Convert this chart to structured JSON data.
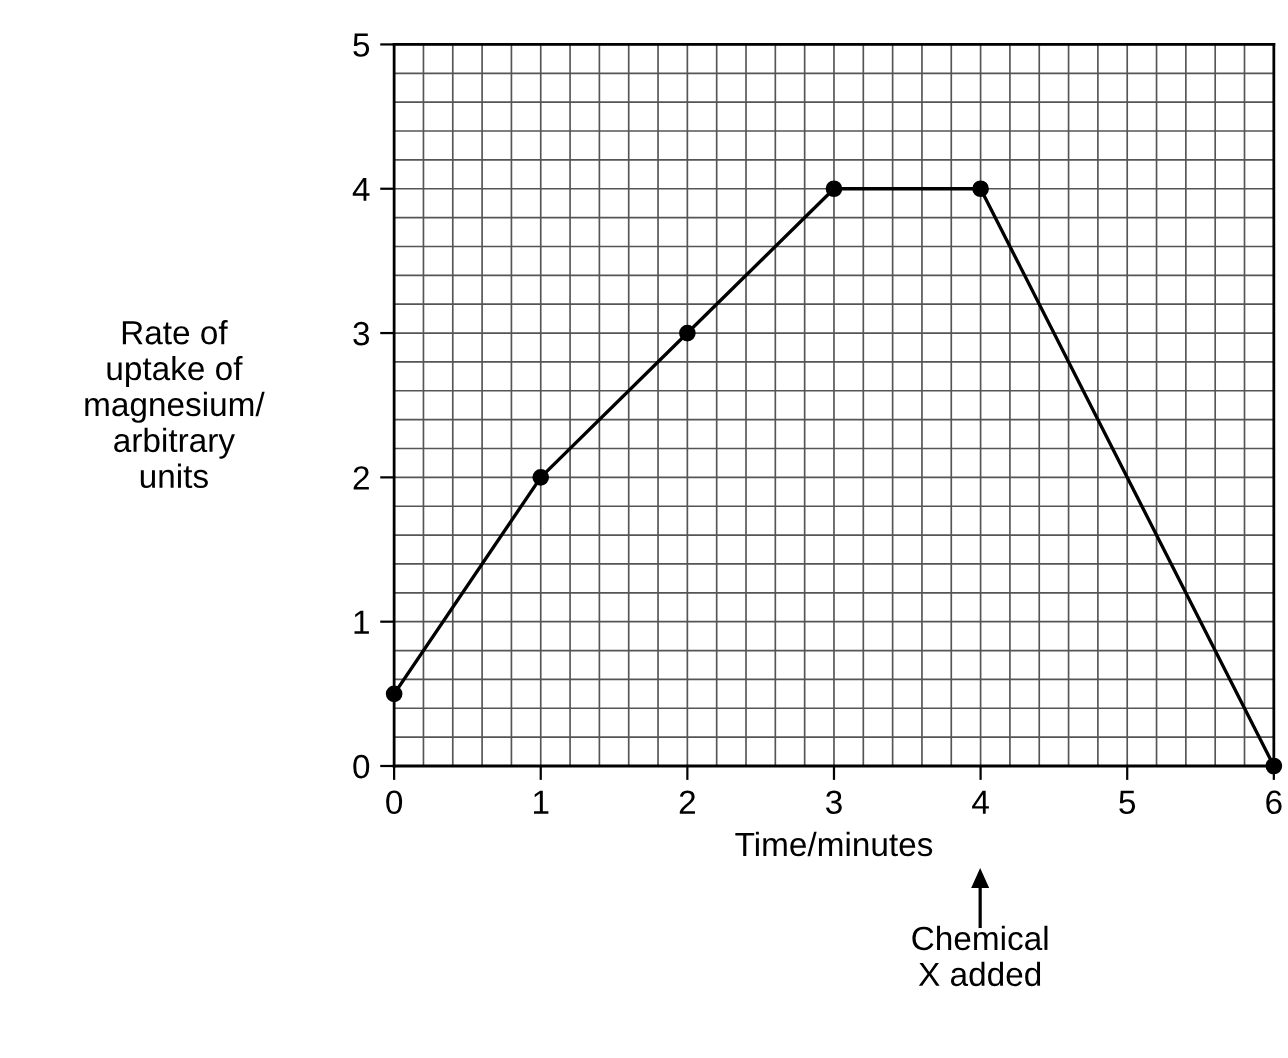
{
  "chart_data": {
    "type": "line",
    "x": [
      0,
      1,
      2,
      3,
      4,
      6
    ],
    "values": [
      0.5,
      2,
      3,
      4,
      4,
      0
    ],
    "color": "#000000",
    "xlabel": "Time/minutes",
    "ylabel": "Rate of\nuptake of\nmagnesium/\narbitrary\nunits",
    "xlim": [
      0,
      6
    ],
    "xticks": [
      0,
      1,
      2,
      3,
      4,
      5,
      6
    ],
    "ylim": [
      0,
      5
    ],
    "yticks": [
      0,
      1,
      2,
      3,
      4,
      5
    ],
    "grid": true,
    "marker": "circle",
    "line_style": "solid",
    "annotations": [
      "Chemical\nX added"
    ]
  }
}
